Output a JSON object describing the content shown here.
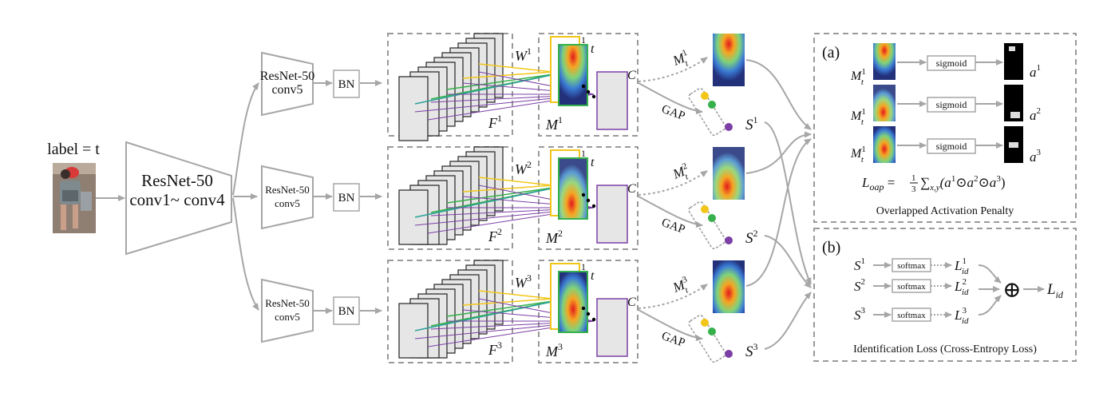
{
  "input": {
    "label": "label = t"
  },
  "backbone": {
    "line1": "ResNet-50",
    "line2": "conv1~ conv4"
  },
  "branches": [
    {
      "conv5_line1": "ResNet-50",
      "conv5_line2": "conv5",
      "bn": "BN",
      "W_base": "W",
      "W_sup": "1",
      "F_base": "F",
      "F_sup": "1",
      "M_base": "M",
      "M_sup": "1",
      "map_num": "1",
      "map_t": "t",
      "C": "C",
      "Mt_base": "M",
      "Mt_sup": "1",
      "Mt_sub": "t",
      "gap": "GAP",
      "S_base": "S",
      "S_sup": "1"
    },
    {
      "conv5_line1": "ResNet-50",
      "conv5_line2": "conv5",
      "bn": "BN",
      "W_base": "W",
      "W_sup": "2",
      "F_base": "F",
      "F_sup": "2",
      "M_base": "M",
      "M_sup": "2",
      "map_num": "1",
      "map_t": "t",
      "C": "C",
      "Mt_base": "M",
      "Mt_sup": "2",
      "Mt_sub": "t",
      "gap": "GAP",
      "S_base": "S",
      "S_sup": "2"
    },
    {
      "conv5_line1": "ResNet-50",
      "conv5_line2": "conv5",
      "bn": "BN",
      "W_base": "W",
      "W_sup": "3",
      "F_base": "F",
      "F_sup": "3",
      "M_base": "M",
      "M_sup": "3",
      "map_num": "1",
      "map_t": "t",
      "C": "C",
      "Mt_base": "M",
      "Mt_sup": "3",
      "Mt_sub": "t",
      "gap": "GAP",
      "S_base": "S",
      "S_sup": "3"
    }
  ],
  "panel_a": {
    "tag": "(a)",
    "rows": [
      {
        "M_base": "M",
        "M_sup": "1",
        "M_sub": "t",
        "op": "sigmoid",
        "a_base": "a",
        "a_sup": "1"
      },
      {
        "M_base": "M",
        "M_sup": "1",
        "M_sub": "t",
        "op": "sigmoid",
        "a_base": "a",
        "a_sup": "2"
      },
      {
        "M_base": "M",
        "M_sup": "1",
        "M_sub": "t",
        "op": "sigmoid",
        "a_base": "a",
        "a_sup": "3"
      }
    ],
    "formula": {
      "L": "L",
      "L_sub": "oap",
      "eq": " = ",
      "num": "1",
      "den": "3",
      "sum": "∑",
      "sum_sub": "x,y",
      "body_open": "(a",
      "s1": "1",
      "dot1": "⊙a",
      "s2": "2",
      "dot2": "⊙a",
      "s3": "3",
      "body_close": ")"
    },
    "caption": "Overlapped Activation Penalty"
  },
  "panel_b": {
    "tag": "(b)",
    "rows": [
      {
        "S_base": "S",
        "S_sup": "1",
        "op": "softmax",
        "L_base": "L",
        "L_sup": "1",
        "L_sub": "id"
      },
      {
        "S_base": "S",
        "S_sup": "2",
        "op": "softmax",
        "L_base": "L",
        "L_sup": "2",
        "L_sub": "id"
      },
      {
        "S_base": "S",
        "S_sup": "3",
        "op": "softmax",
        "L_base": "L",
        "L_sup": "3",
        "L_sub": "id"
      }
    ],
    "oplus": "⊕",
    "out_base": "L",
    "out_sub": "id",
    "caption": "Identification Loss (Cross-Entropy Loss)"
  },
  "colors": {
    "line_gray": "#a6a6a6",
    "slab_fill": "#e6e6e6",
    "yellow": "#f2c618",
    "green": "#36b04a",
    "purple": "#7b3fa6",
    "teal": "#2aa198",
    "dashed_border": "#9a9a9a"
  }
}
